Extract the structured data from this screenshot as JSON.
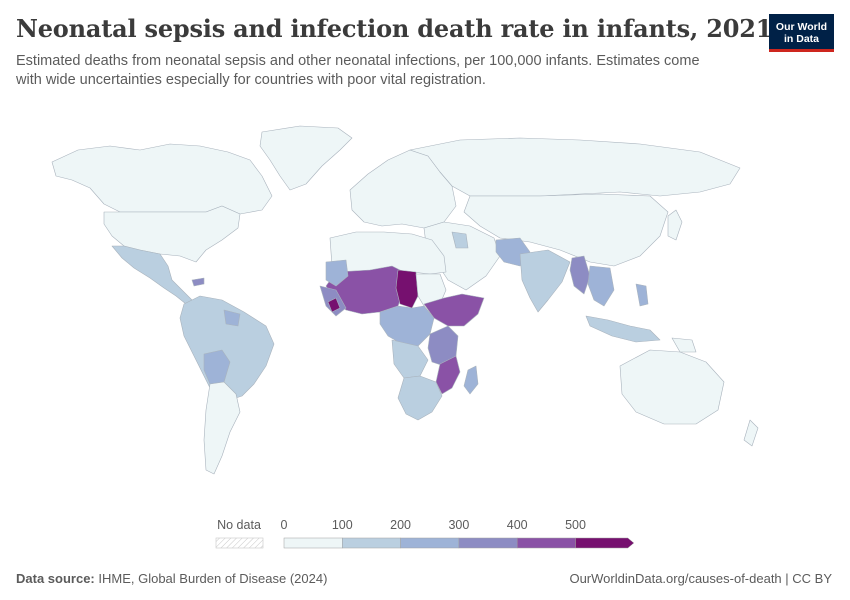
{
  "title": "Neonatal sepsis and infection death rate in infants, 2021",
  "subtitle": "Estimated deaths from neonatal sepsis and other neonatal infections, per 100,000 infants. Estimates come with wide uncertainties especially for countries with poor vital registration.",
  "logo": {
    "line1": "Our World",
    "line2": "in Data"
  },
  "legend": {
    "no_data_label": "No data",
    "ticks": [
      "0",
      "100",
      "200",
      "300",
      "400",
      "500"
    ],
    "bins": [
      {
        "from": 0,
        "to": 100,
        "color": "#eef6f7"
      },
      {
        "from": 100,
        "to": 200,
        "color": "#bacfe0"
      },
      {
        "from": 200,
        "to": 300,
        "color": "#9eb3d7"
      },
      {
        "from": 300,
        "to": 400,
        "color": "#8d8cc3"
      },
      {
        "from": 400,
        "to": 500,
        "color": "#8a52a6"
      },
      {
        "from": 500,
        "to": null,
        "color": "#76106f"
      }
    ]
  },
  "map_colors": {
    "lowest": "#eef6f7",
    "low": "#bacfe0",
    "mid": "#9eb3d7",
    "high": "#8d8cc3",
    "higher": "#8a52a6",
    "highest": "#76106f",
    "border": "#a9b3bd"
  },
  "footer": {
    "source_label": "Data source:",
    "source_text": "IHME, Global Burden of Disease (2024)",
    "url": "OurWorldinData.org/causes-of-death | CC BY"
  }
}
